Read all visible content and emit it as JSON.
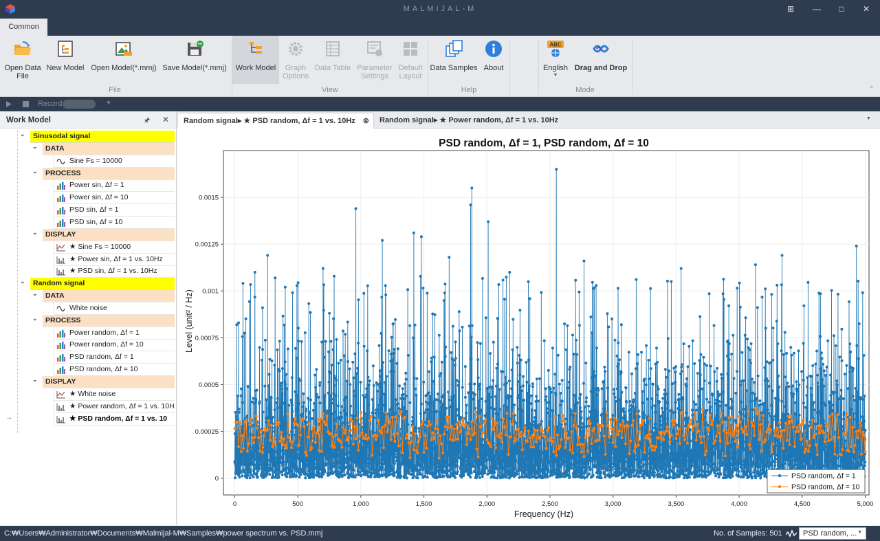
{
  "window": {
    "title": "MALMIJAL-M"
  },
  "ribbon_tab": "Common",
  "ribbon": {
    "file": {
      "label": "File",
      "buttons": [
        {
          "line1": "Open Data",
          "line2": "File",
          "icon": "folder-open-icon"
        },
        {
          "line1": "New Model",
          "line2": "",
          "icon": "new-model-icon"
        },
        {
          "line1": "Open Model(*.mmj)",
          "line2": "",
          "icon": "open-model-icon"
        },
        {
          "line1": "Save Model(*.mmj)",
          "line2": "",
          "icon": "save-model-icon"
        }
      ]
    },
    "view": {
      "label": "View",
      "buttons": [
        {
          "line1": "Work Model",
          "line2": "",
          "icon": "work-model-icon"
        },
        {
          "line1": "Graph",
          "line2": "Options",
          "icon": "gear-icon"
        },
        {
          "line1": "Data Table",
          "line2": "",
          "icon": "table-icon"
        },
        {
          "line1": "Parameter",
          "line2": "Settings",
          "icon": "parameter-icon"
        },
        {
          "line1": "Default",
          "line2": "Layout",
          "icon": "layout-icon"
        }
      ]
    },
    "help": {
      "label": "Help",
      "buttons": [
        {
          "line1": "Data Samples",
          "line2": "",
          "icon": "samples-icon"
        },
        {
          "line1": "About",
          "line2": "",
          "icon": "info-icon"
        }
      ]
    },
    "mode": {
      "label": "Mode",
      "buttons": [
        {
          "line1": "English",
          "line2": "",
          "icon": "language-icon",
          "badge": "ABC"
        },
        {
          "line1": "Drag and Drop",
          "line2": "",
          "icon": "drag-drop-icon"
        }
      ]
    }
  },
  "record_label": "Record",
  "work_model": {
    "title": "Work Model",
    "tree": [
      {
        "kind": "root",
        "label": "Sinusodal signal"
      },
      {
        "kind": "cat",
        "label": "DATA"
      },
      {
        "kind": "leaf",
        "icon": "wave",
        "label": "Sine Fs = 10000"
      },
      {
        "kind": "cat",
        "label": "PROCESS"
      },
      {
        "kind": "leaf",
        "icon": "bars",
        "label": "Power sin, Δf = 1"
      },
      {
        "kind": "leaf",
        "icon": "bars",
        "label": "Power sin, Δf = 10"
      },
      {
        "kind": "leaf",
        "icon": "bars",
        "label": "PSD sin, Δf = 1"
      },
      {
        "kind": "leaf",
        "icon": "bars",
        "label": "PSD sin, Δf = 10"
      },
      {
        "kind": "cat",
        "label": "DISPLAY"
      },
      {
        "kind": "leaf",
        "icon": "linechart",
        "label": "★ Sine Fs = 10000"
      },
      {
        "kind": "leaf",
        "icon": "stems",
        "label": "★ Power sin, Δf = 1 vs. 10Hz"
      },
      {
        "kind": "leaf",
        "icon": "stems",
        "label": "★ PSD sin, Δf = 1 vs. 10Hz"
      },
      {
        "kind": "root",
        "label": "Random signal"
      },
      {
        "kind": "cat",
        "label": "DATA"
      },
      {
        "kind": "leaf",
        "icon": "wave",
        "label": "White noise"
      },
      {
        "kind": "cat",
        "label": "PROCESS"
      },
      {
        "kind": "leaf",
        "icon": "bars",
        "label": "Power random, Δf = 1"
      },
      {
        "kind": "leaf",
        "icon": "bars",
        "label": "Power random, Δf = 10"
      },
      {
        "kind": "leaf",
        "icon": "bars",
        "label": "PSD random, Δf = 1"
      },
      {
        "kind": "leaf",
        "icon": "bars",
        "label": "PSD random, Δf = 10"
      },
      {
        "kind": "cat",
        "label": "DISPLAY"
      },
      {
        "kind": "leaf",
        "icon": "linechart",
        "label": "★ White noise"
      },
      {
        "kind": "leaf",
        "icon": "stems",
        "label": "★ Power random, Δf = 1 vs. 10H"
      },
      {
        "kind": "leaf",
        "icon": "stems",
        "label": "★ PSD random, Δf = 1 vs. 10",
        "selected": true
      }
    ]
  },
  "doc_tabs": [
    {
      "label": "Random signal▸ ★ PSD random, Δf = 1 vs. 10Hz",
      "active": true
    },
    {
      "label": "Random signal▸ ★ Power random, Δf = 1 vs. 10Hz",
      "active": false
    }
  ],
  "chart_data": {
    "type": "line",
    "title": "PSD random, Δf = 1, PSD random, Δf = 10",
    "xlabel": "Frequency (Hz)",
    "ylabel": "Level (unit² / Hz)",
    "xlim": [
      -90,
      5030
    ],
    "ylim": [
      -9e-05,
      0.00175
    ],
    "x_ticks": [
      0,
      500,
      1000,
      1500,
      2000,
      2500,
      3000,
      3500,
      4000,
      4500,
      5000
    ],
    "x_tick_labels": [
      "0",
      "500",
      "1,000",
      "1,500",
      "2,000",
      "2,500",
      "3,000",
      "3,500",
      "4,000",
      "4,500",
      "5,000"
    ],
    "y_ticks": [
      0,
      0.00025,
      0.0005,
      0.00075,
      0.001,
      0.00125,
      0.0015
    ],
    "y_tick_labels": [
      "0",
      "0.00025",
      "0.0005",
      "0.00075",
      "0.001",
      "0.00125",
      "0.0015"
    ],
    "grid": true,
    "legend": "bottom-right",
    "series": [
      {
        "name": "PSD random, Δf = 1",
        "color": "#1f77b4",
        "x_range": [
          0,
          5000
        ],
        "step": 1,
        "approx_mean": 0.0002,
        "peaks": [
          [
            15,
            0.00082
          ],
          [
            30,
            0.00083
          ],
          [
            160,
            0.0011
          ],
          [
            220,
            0.00091
          ],
          [
            260,
            0.00119
          ],
          [
            400,
            0.00102
          ],
          [
            700,
            0.00112
          ],
          [
            960,
            0.00144
          ],
          [
            1170,
            0.00127
          ],
          [
            1420,
            0.00131
          ],
          [
            1480,
            0.00129
          ],
          [
            1700,
            0.00118
          ],
          [
            1870,
            0.00146
          ],
          [
            1880,
            0.00155
          ],
          [
            2010,
            0.00137
          ],
          [
            2180,
            0.0011
          ],
          [
            2550,
            0.00165
          ],
          [
            2770,
            0.00116
          ],
          [
            3540,
            0.00112
          ],
          [
            4130,
            0.00114
          ],
          [
            4340,
            0.00119
          ],
          [
            4930,
            0.00124
          ],
          [
            4980,
            0.00099
          ]
        ]
      },
      {
        "name": "PSD random, Δf = 10",
        "color": "#ff7f0e",
        "x_range": [
          0,
          5000
        ],
        "step": 10,
        "approx_mean": 0.0002,
        "approx_range": [
          0.0001,
          0.00038
        ]
      }
    ]
  },
  "status": {
    "path": "C:₩Users₩Administrator₩Documents₩Malmijal-M₩Samples₩power spectrum vs. PSD.mmj",
    "samples": "No. of Samples: 501",
    "selector": "PSD random, ..."
  }
}
